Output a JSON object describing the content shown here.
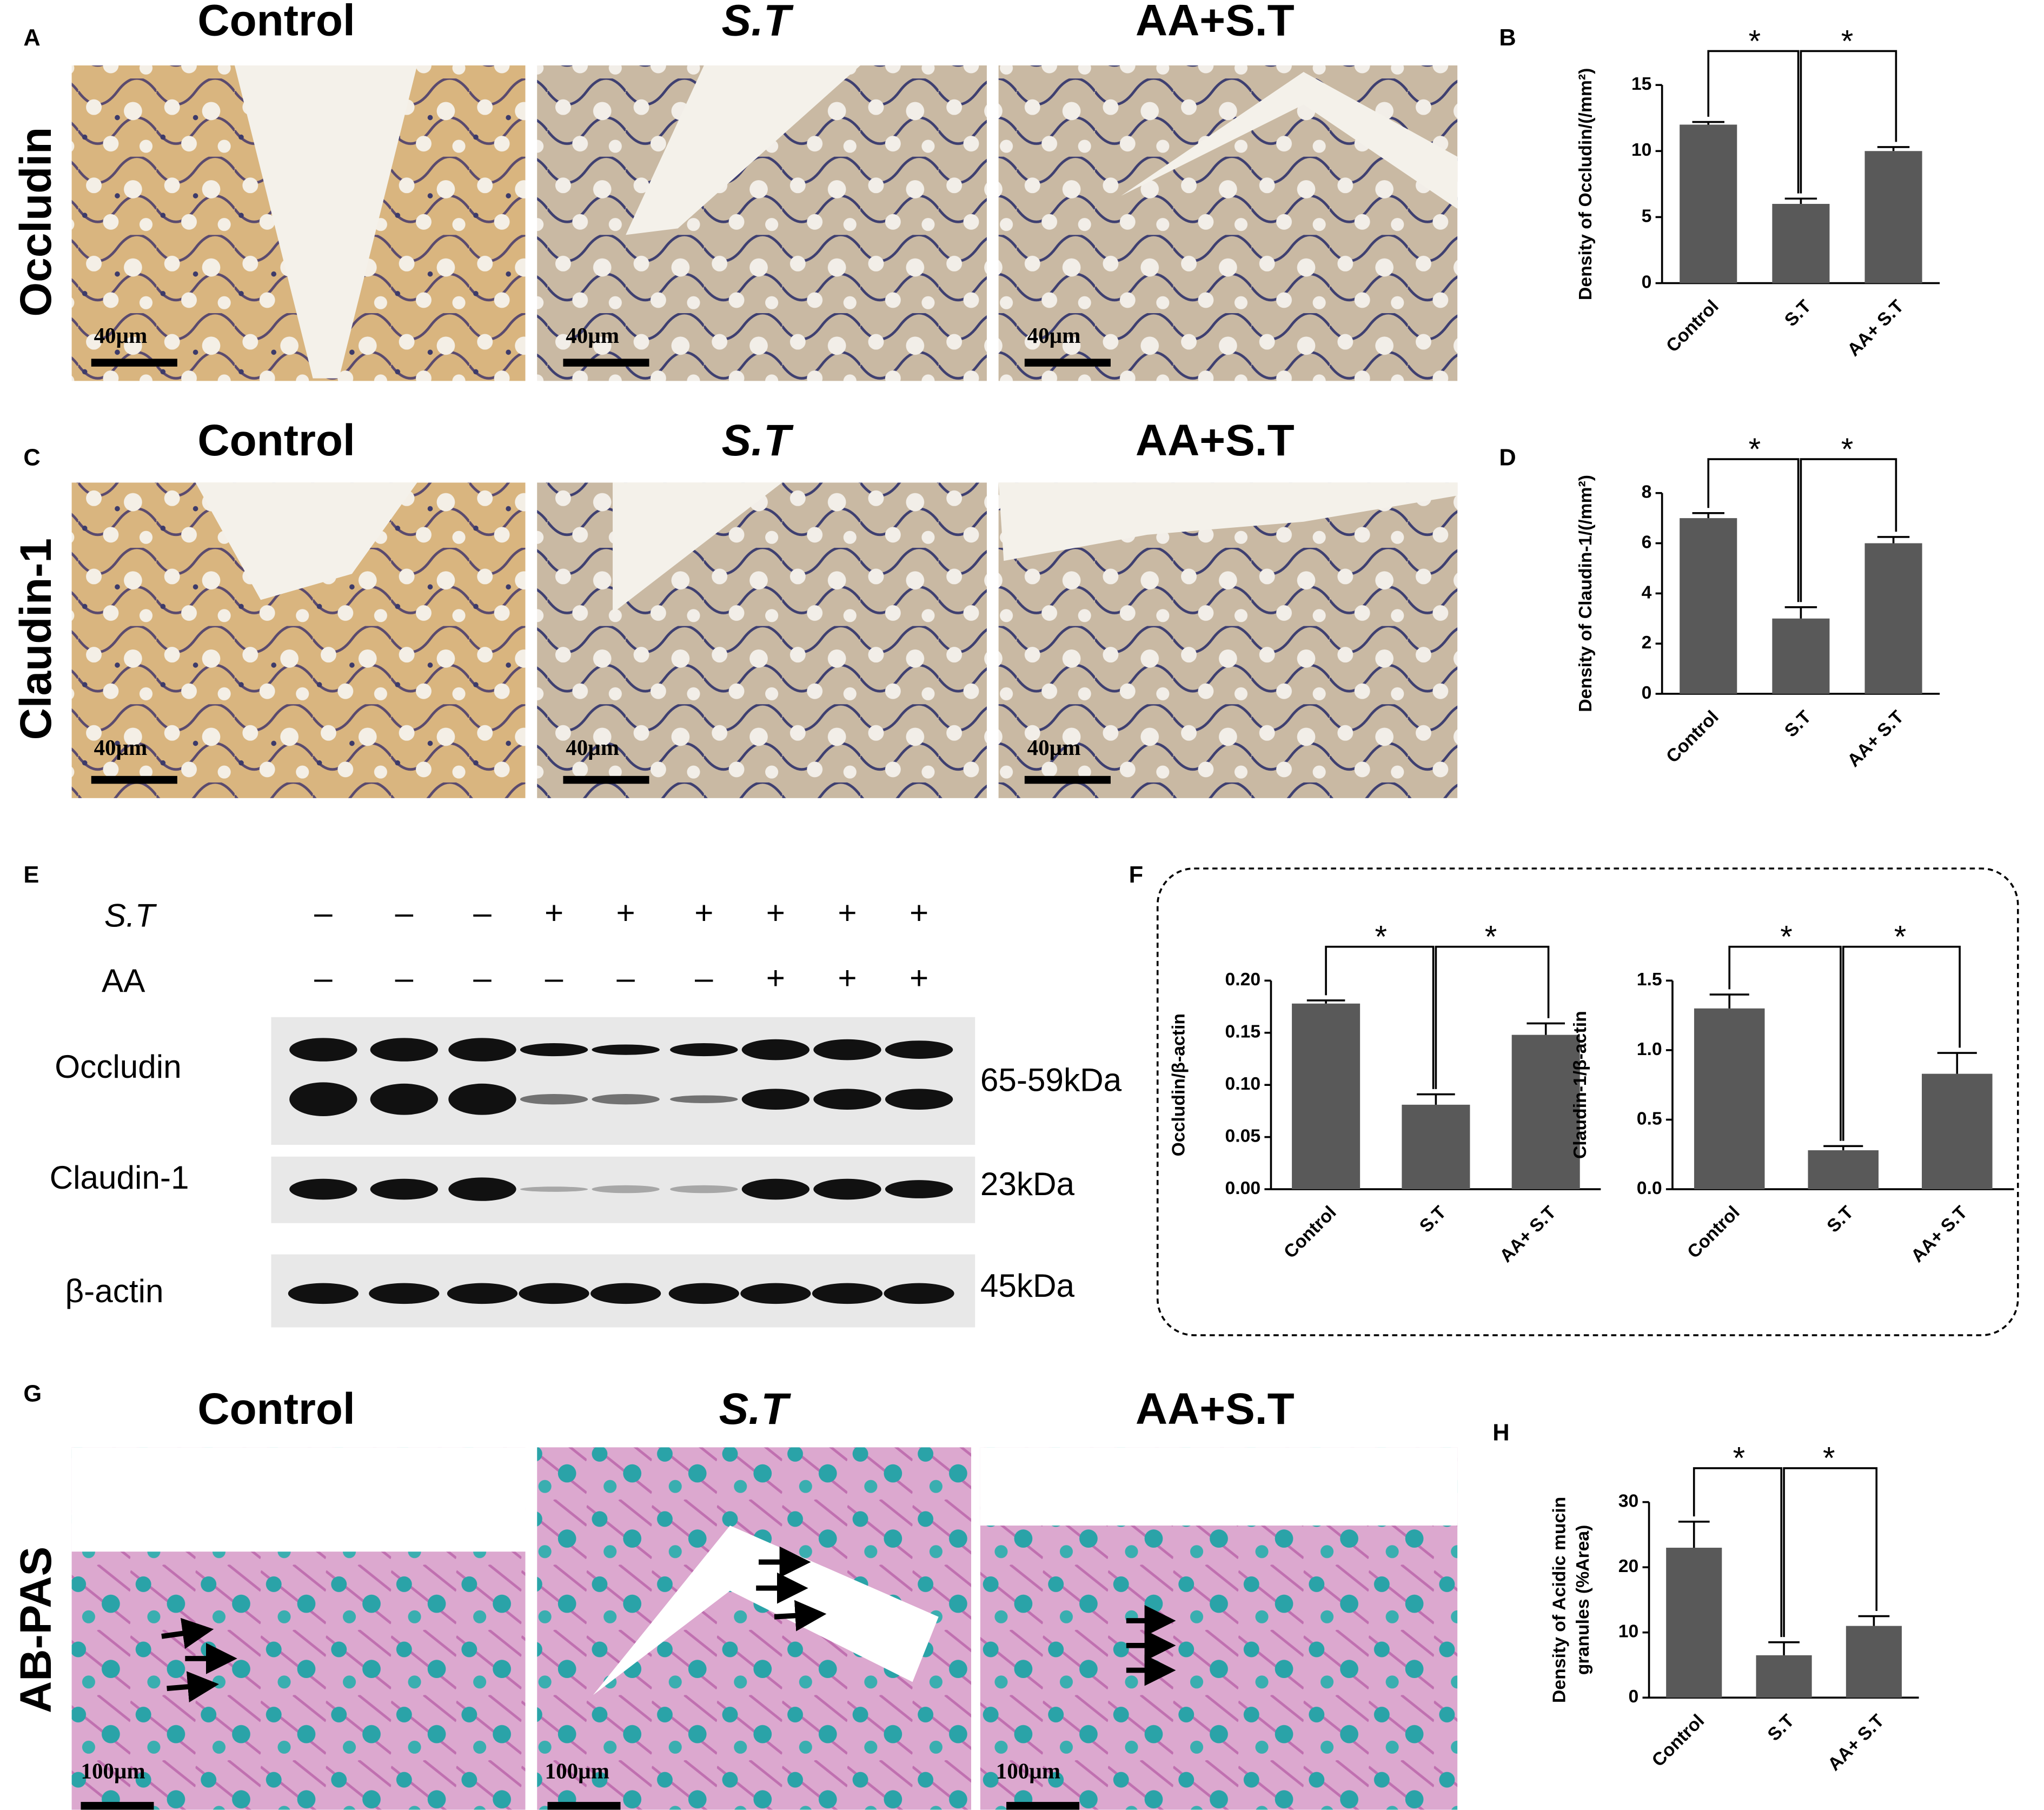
{
  "figure": {
    "letters": [
      "A",
      "B",
      "C",
      "D",
      "E",
      "F",
      "G",
      "H"
    ],
    "row_a": {
      "columns": [
        "Control",
        "S.T",
        "AA+S.T"
      ],
      "stain": "Occludin",
      "scalebars": [
        "40µm",
        "40µm",
        "40µm"
      ]
    },
    "row_c": {
      "columns": [
        "Control",
        "S.T",
        "AA+S.T"
      ],
      "stain": "Claudin-1",
      "scalebars": [
        "40µm",
        "40µm",
        "40µm"
      ]
    },
    "row_g": {
      "columns": [
        "Control",
        "S.T",
        "AA+S.T"
      ],
      "stain": "AB-PAS",
      "scalebars": [
        "100µm",
        "100µm",
        "100µm"
      ]
    },
    "blot": {
      "treatments": [
        {
          "name": "S.T",
          "signs": [
            "–",
            "–",
            "–",
            "+",
            "+",
            "+",
            "+",
            "+",
            "+"
          ]
        },
        {
          "name": "AA",
          "signs": [
            "–",
            "–",
            "–",
            "–",
            "–",
            "–",
            "+",
            "+",
            "+"
          ]
        }
      ],
      "bands": [
        {
          "name": "Occludin",
          "size": "65-59kDa"
        },
        {
          "name": "Claudin-1",
          "size": "23kDa"
        },
        {
          "name": "β-actin",
          "size": "45kDa"
        }
      ]
    }
  },
  "chart_data": [
    {
      "type": "bar",
      "ylabel": [
        "Density of Occludin/(/mm²)"
      ],
      "categories": [
        "Control",
        "S.T",
        "AA+ S.T"
      ],
      "values": [
        12,
        6,
        10
      ],
      "errors": [
        0.2,
        0.4,
        0.3
      ],
      "ylim": [
        0,
        15
      ],
      "yticks": [
        0,
        5,
        10,
        15
      ],
      "color": "#595959",
      "annotations": [
        "*",
        "*"
      ]
    },
    {
      "type": "bar",
      "ylabel": [
        "Density of Claudin-1/(/mm²)"
      ],
      "categories": [
        "Control",
        "S.T",
        "AA+ S.T"
      ],
      "values": [
        7,
        3,
        6
      ],
      "errors": [
        0.2,
        0.45,
        0.25
      ],
      "ylim": [
        0,
        8
      ],
      "yticks": [
        0,
        2,
        4,
        6,
        8
      ],
      "color": "#595959",
      "annotations": [
        "*",
        "*"
      ]
    },
    {
      "type": "bar",
      "ylabel": [
        "Occludin/β-actin"
      ],
      "categories": [
        "Control",
        "S.T",
        "AA+ S.T"
      ],
      "values": [
        0.178,
        0.081,
        0.148
      ],
      "errors": [
        0.003,
        0.01,
        0.011
      ],
      "ylim": [
        0,
        0.2
      ],
      "yticks": [
        {
          "value": 0,
          "label": "0.00"
        },
        {
          "value": 0.05,
          "label": "0.05"
        },
        {
          "value": 0.1,
          "label": "0.10"
        },
        {
          "value": 0.15,
          "label": "0.15"
        },
        {
          "value": 0.2,
          "label": "0.20"
        }
      ],
      "color": "#595959",
      "annotations": [
        "*",
        "*"
      ]
    },
    {
      "type": "bar",
      "ylabel": [
        "Claudin-1/β-actin"
      ],
      "categories": [
        "Control",
        "S.T",
        "AA+ S.T"
      ],
      "values": [
        1.3,
        0.28,
        0.83
      ],
      "errors": [
        0.1,
        0.03,
        0.15
      ],
      "ylim": [
        0,
        1.5
      ],
      "yticks": [
        {
          "value": 0,
          "label": "0.0"
        },
        {
          "value": 0.5,
          "label": "0.5"
        },
        {
          "value": 1,
          "label": "1.0"
        },
        {
          "value": 1.5,
          "label": "1.5"
        }
      ],
      "color": "#595959",
      "annotations": [
        "*",
        "*"
      ]
    },
    {
      "type": "bar",
      "ylabel": [
        "Density of Acidic mucin",
        "granules (%Area)"
      ],
      "categories": [
        "Control",
        "S.T",
        "AA+ S.T"
      ],
      "values": [
        23,
        6.5,
        11
      ],
      "errors": [
        4,
        2,
        1.5
      ],
      "ylim": [
        0,
        30
      ],
      "yticks": [
        0,
        10,
        20,
        30
      ],
      "color": "#595959",
      "annotations": [
        "*",
        "*"
      ]
    }
  ]
}
